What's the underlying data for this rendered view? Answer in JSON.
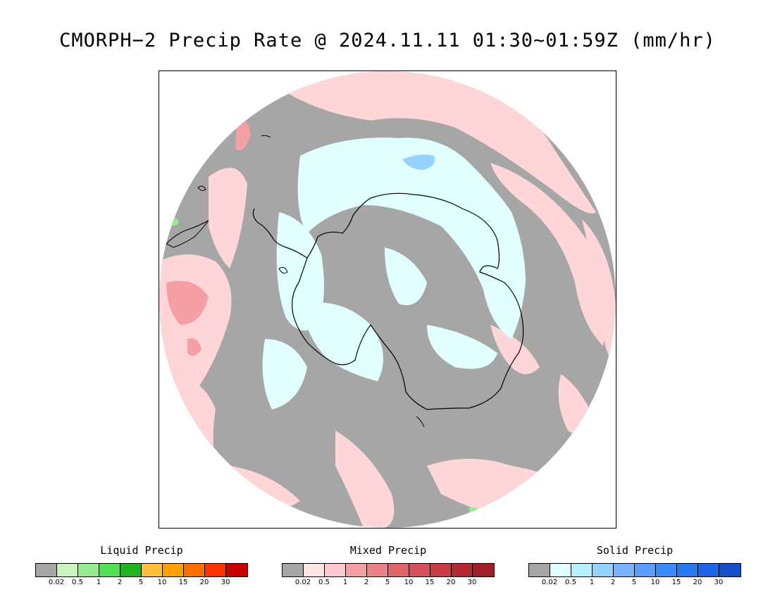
{
  "title": "CMORPH−2 Precip Rate @ 2024.11.11 01:30~01:59Z (mm/hr)",
  "legends": [
    {
      "name": "Liquid Precip",
      "colors": [
        "#a6a6a6",
        "#c8f5c0",
        "#96ec8c",
        "#50e050",
        "#1eb41e",
        "#ffbe3c",
        "#ffa000",
        "#ff6e00",
        "#ff3200",
        "#c80000"
      ],
      "labels": [
        "0.02",
        "0.5",
        "1",
        "2",
        "5",
        "10",
        "15",
        "20",
        "30"
      ]
    },
    {
      "name": "Mixed Precip",
      "colors": [
        "#a6a6a6",
        "#ffe4e6",
        "#ffc8cc",
        "#f5a0a5",
        "#ec8287",
        "#e16469",
        "#d6505a",
        "#c83c46",
        "#b42832",
        "#a01e28"
      ],
      "labels": [
        "0.02",
        "0.5",
        "1",
        "2",
        "5",
        "10",
        "15",
        "20",
        "30"
      ]
    },
    {
      "name": "Solid Precip",
      "colors": [
        "#a6a6a6",
        "#e1ffff",
        "#b4f0ff",
        "#96d2ff",
        "#78b4ff",
        "#5aa0ff",
        "#3c8cff",
        "#2878f0",
        "#1e64e6",
        "#1450c8"
      ],
      "labels": [
        "0.02",
        "0.5",
        "1",
        "2",
        "5",
        "10",
        "15",
        "20",
        "30"
      ]
    }
  ]
}
